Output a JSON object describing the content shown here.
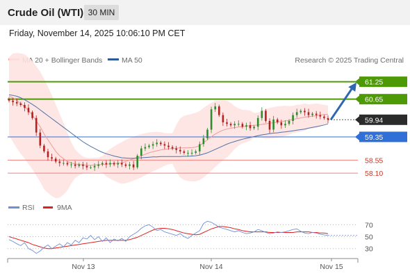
{
  "header": {
    "title": "Crude Oil (WTI)",
    "timeframe": "30 MIN"
  },
  "timestamp": "Friday, November 14, 2025 10:06:10 PM CET",
  "legend": {
    "ma_bb": "MA 20 + Bollinger Bands",
    "ma50": "MA 50"
  },
  "copyright": "Research © 2025 Trading Central",
  "rsi_legend": {
    "rsi": "RSI",
    "ma": "9MA"
  },
  "colors": {
    "resistance": "#4e9a06",
    "support_line": "#2f6fd6",
    "support_weak": "#f08080",
    "arrow": "#2f66b0",
    "bb_fill": "#fde3e1",
    "ma20": "#f19999",
    "ma50": "#4e72a8",
    "rsi": "#6f8fd8",
    "rsi_ma": "#e02020",
    "current": "#2b2b2b"
  },
  "chart_data": [
    {
      "type": "candlestick",
      "title": "Crude Oil (WTI)",
      "interval": "30 MIN",
      "x_ticks": [
        "Nov 13",
        "Nov 14",
        "Nov 15"
      ],
      "y_range": [
        57.6,
        61.6
      ],
      "current_price": 59.94,
      "levels": [
        {
          "label": "61.25",
          "value": 61.25,
          "kind": "resistance"
        },
        {
          "label": "60.65",
          "value": 60.65,
          "kind": "resistance"
        },
        {
          "label": "59.94",
          "value": 59.94,
          "kind": "current"
        },
        {
          "label": "59.35",
          "value": 59.35,
          "kind": "support"
        },
        {
          "label": "58.55",
          "value": 58.55,
          "kind": "support-weak"
        },
        {
          "label": "58.10",
          "value": 58.1,
          "kind": "support-weak"
        }
      ],
      "projection": {
        "from": 59.94,
        "to": 61.25
      },
      "series": [
        {
          "name": "Price",
          "close": [
            60.6,
            60.55,
            60.5,
            60.45,
            60.35,
            60.2,
            60.0,
            59.5,
            59.05,
            58.85,
            58.65,
            58.6,
            58.5,
            58.45,
            58.45,
            58.4,
            58.4,
            58.35,
            58.4,
            58.35,
            58.3,
            58.3,
            58.35,
            58.4,
            58.45,
            58.4,
            58.45,
            58.4,
            58.45,
            58.4,
            58.35,
            58.4,
            58.3,
            58.7,
            58.95,
            59.0,
            59.05,
            59.1,
            59.15,
            59.1,
            59.05,
            59.0,
            58.95,
            58.9,
            58.85,
            58.8,
            58.8,
            58.8,
            58.85,
            59.1,
            59.3,
            59.6,
            60.3,
            60.4,
            60.1,
            59.85,
            59.8,
            59.75,
            59.8,
            59.8,
            59.7,
            59.75,
            59.65,
            59.7,
            60.0,
            60.25,
            59.9,
            59.6,
            59.95,
            59.85,
            59.75,
            59.8,
            59.9,
            60.1,
            60.2,
            60.25,
            60.2,
            60.1,
            60.15,
            60.1,
            60.05,
            60.0,
            59.94
          ]
        },
        {
          "name": "MA 20",
          "values": [
            60.75,
            60.7,
            60.6,
            60.5,
            60.4,
            60.25,
            60.1,
            59.9,
            59.7,
            59.45,
            59.25,
            59.05,
            58.85,
            58.7,
            58.6,
            58.5,
            58.45,
            58.42,
            58.4,
            58.38,
            58.37,
            58.37,
            58.38,
            58.39,
            58.4,
            58.41,
            58.42,
            58.43,
            58.44,
            58.45,
            58.5,
            58.55,
            58.6,
            58.65,
            58.7,
            58.75,
            58.8,
            58.84,
            58.87,
            58.9,
            58.92,
            58.94,
            58.95,
            58.96,
            58.97,
            58.97,
            58.97,
            58.98,
            59.0,
            59.05,
            59.15,
            59.25,
            59.35,
            59.45,
            59.52,
            59.58,
            59.62,
            59.65,
            59.67,
            59.69,
            59.7,
            59.72,
            59.74,
            59.75,
            59.76,
            59.78,
            59.8,
            59.82,
            59.84,
            59.86,
            59.88,
            59.9,
            59.92,
            59.95,
            59.98,
            60.0,
            60.03,
            60.05,
            60.06,
            60.08,
            60.1,
            60.12,
            60.13
          ]
        },
        {
          "name": "MA 50",
          "values": [
            60.8,
            60.78,
            60.75,
            60.7,
            60.63,
            60.55,
            60.47,
            60.38,
            60.28,
            60.18,
            60.08,
            59.98,
            59.88,
            59.78,
            59.68,
            59.58,
            59.48,
            59.38,
            59.28,
            59.18,
            59.1,
            59.02,
            58.95,
            58.88,
            58.82,
            58.77,
            58.73,
            58.69,
            58.66,
            58.63,
            58.62,
            58.61,
            58.61,
            58.62,
            58.63,
            58.64,
            58.65,
            58.66,
            58.66,
            58.67,
            58.67,
            58.67,
            58.67,
            58.67,
            58.67,
            58.68,
            58.68,
            58.69,
            58.7,
            58.72,
            58.76,
            58.8,
            58.86,
            58.92,
            58.98,
            59.04,
            59.1,
            59.15,
            59.19,
            59.23,
            59.27,
            59.3,
            59.33,
            59.36,
            59.39,
            59.42,
            59.44,
            59.46,
            59.48,
            59.49,
            59.51,
            59.52,
            59.54,
            59.56,
            59.58,
            59.6,
            59.62,
            59.65,
            59.68,
            59.7,
            59.73,
            59.76,
            59.8
          ]
        }
      ]
    },
    {
      "type": "line",
      "title": "RSI",
      "x_ticks": [
        "Nov 13",
        "Nov 14",
        "Nov 15"
      ],
      "y_ticks": [
        "70",
        "50",
        "30"
      ],
      "y_range": [
        18,
        82
      ],
      "series": [
        {
          "name": "RSI",
          "values": [
            45,
            42,
            38,
            35,
            40,
            30,
            27,
            22,
            26,
            32,
            36,
            30,
            34,
            38,
            33,
            40,
            36,
            44,
            40,
            48,
            46,
            52,
            45,
            50,
            42,
            48,
            40,
            46,
            43,
            47,
            42,
            50,
            54,
            58,
            64,
            68,
            70,
            66,
            60,
            62,
            58,
            56,
            54,
            52,
            55,
            50,
            47,
            52,
            56,
            60,
            72,
            76,
            74,
            70,
            66,
            64,
            62,
            60,
            58,
            60,
            57,
            55,
            56,
            58,
            62,
            60,
            57,
            55,
            56,
            58,
            57,
            58,
            60,
            62,
            63,
            59,
            56,
            55,
            57,
            56,
            54,
            53,
            52
          ]
        },
        {
          "name": "9MA",
          "values": [
            50,
            48,
            46,
            44,
            42,
            40,
            37,
            35,
            33,
            31,
            30,
            30,
            31,
            32,
            33,
            34,
            35,
            36,
            37,
            38,
            39,
            40,
            41,
            42,
            43,
            44,
            44,
            44,
            44,
            44,
            44,
            45,
            47,
            49,
            52,
            55,
            58,
            61,
            63,
            64,
            64,
            63,
            62,
            60,
            58,
            56,
            55,
            54,
            53,
            54,
            57,
            60,
            63,
            65,
            67,
            67,
            66,
            65,
            63,
            62,
            60,
            59,
            58,
            58,
            58,
            58,
            58,
            57,
            57,
            57,
            57,
            57,
            57,
            57,
            58,
            58,
            58,
            58,
            57,
            57,
            56,
            56,
            55
          ]
        }
      ]
    }
  ]
}
